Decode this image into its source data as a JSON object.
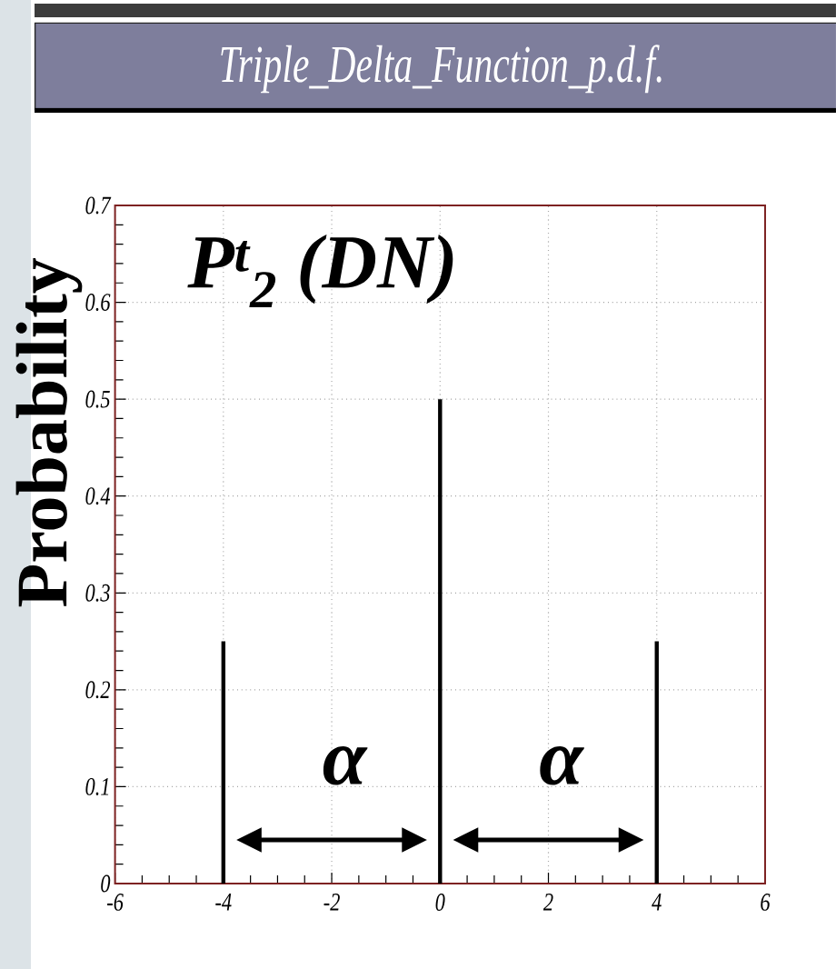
{
  "chart_data": {
    "type": "bar",
    "title": "Triple_Delta_Function_p.d.f.",
    "ylabel": "Probability",
    "x": [
      -4,
      0,
      4
    ],
    "values": [
      0.25,
      0.5,
      0.25
    ],
    "color": "#000000",
    "xlim": [
      -6,
      6
    ],
    "xticks": [
      -6,
      -4,
      -2,
      0,
      2,
      4,
      6
    ],
    "ylim": [
      0,
      0.7
    ],
    "yticks": [
      0,
      0.1,
      0.2,
      0.3,
      0.4,
      0.5,
      0.6,
      0.7
    ],
    "grid": true,
    "annotations": [
      "P$^{t}$$_{2}$ (DN)",
      "α",
      "α"
    ]
  }
}
